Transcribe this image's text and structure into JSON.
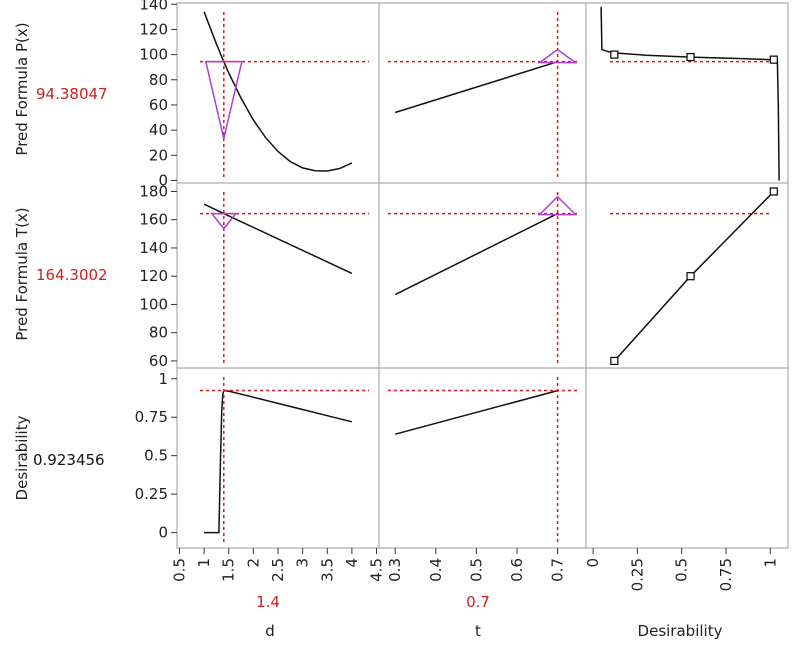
{
  "colors": {
    "accent_red": "#cc1f1f",
    "handle_purple": "#b33bd6",
    "curve": "#111111",
    "frame": "#9a9a9a"
  },
  "chart_data": {
    "type": "line",
    "responses": [
      {
        "name": "Pred Formula P(x)",
        "current_value": "94.38047",
        "y_ticks": [
          0,
          20,
          40,
          60,
          80,
          100,
          120,
          140
        ],
        "ylim": [
          -2,
          141
        ],
        "current": 94.38047,
        "handle_shape": "down-triangle",
        "profiles": {
          "d": [
            [
              1,
              134
            ],
            [
              1.25,
              108.5
            ],
            [
              1.4,
              94.38
            ],
            [
              1.5,
              85.5
            ],
            [
              1.75,
              65.5
            ],
            [
              2,
              48
            ],
            [
              2.25,
              34
            ],
            [
              2.5,
              23
            ],
            [
              2.75,
              15
            ],
            [
              3,
              10
            ],
            [
              3.25,
              7.8
            ],
            [
              3.5,
              7.5
            ],
            [
              3.75,
              9.5
            ],
            [
              4,
              14
            ]
          ],
          "t": [
            [
              0.3,
              54
            ],
            [
              0.7,
              94.38
            ]
          ]
        },
        "desirability": {
          "curve": [
            [
              0.045,
              138
            ],
            [
              0.05,
              104
            ],
            [
              0.07,
              103
            ],
            [
              0.11,
              101.5
            ],
            [
              0.3,
              99.5
            ],
            [
              0.55,
              98
            ],
            [
              0.8,
              97
            ],
            [
              1.0,
              96
            ],
            [
              1.03,
              95.5
            ],
            [
              1.04,
              94
            ],
            [
              1.045,
              60
            ],
            [
              1.05,
              0
            ]
          ],
          "points": [
            [
              0.12,
              100
            ],
            [
              0.55,
              98
            ],
            [
              1.02,
              96
            ]
          ]
        }
      },
      {
        "name": "Pred Formula T(x)",
        "current_value": "164.3002",
        "y_ticks": [
          60,
          80,
          100,
          120,
          140,
          160,
          180
        ],
        "ylim": [
          55,
          186
        ],
        "current": 164.3002,
        "handle_shape": "down-triangle",
        "profiles": {
          "d": [
            [
              1,
              171
            ],
            [
              1.4,
              164.3
            ],
            [
              4,
              122
            ]
          ],
          "t": [
            [
              0.3,
              107
            ],
            [
              0.7,
              164.3
            ]
          ]
        },
        "desirability": {
          "curve": [
            [
              0.12,
              60
            ],
            [
              0.55,
              120
            ],
            [
              1.02,
              180
            ]
          ],
          "points": [
            [
              0.12,
              60
            ],
            [
              0.55,
              120
            ],
            [
              1.02,
              180
            ]
          ]
        }
      },
      {
        "name": "Desirability",
        "current_value": "0.923456",
        "y_ticks": [
          0,
          0.25,
          0.5,
          0.75,
          1
        ],
        "y_tick_labels": [
          "0",
          "0.25",
          "0.5",
          "0.75",
          "1"
        ],
        "ylim": [
          -0.1,
          1.07
        ],
        "current": 0.923456,
        "profiles": {
          "d": [
            [
              1,
              0
            ],
            [
              1.3,
              0
            ],
            [
              1.33,
              0.45
            ],
            [
              1.36,
              0.8
            ],
            [
              1.38,
              0.9
            ],
            [
              1.4,
              0.923
            ],
            [
              1.5,
              0.92
            ],
            [
              2,
              0.88
            ],
            [
              2.5,
              0.84
            ],
            [
              3,
              0.8
            ],
            [
              3.5,
              0.76
            ],
            [
              4,
              0.72
            ]
          ],
          "t": [
            [
              0.3,
              0.64
            ],
            [
              0.7,
              0.923
            ]
          ]
        }
      }
    ],
    "factors": [
      {
        "name": "d",
        "current_value": "1.4",
        "current": 1.4,
        "x_ticks": [
          0.5,
          1,
          1.5,
          2,
          2.5,
          3,
          3.5,
          4,
          4.5
        ],
        "x_tick_labels": [
          "0.5",
          "1",
          "1.5",
          "2",
          "2.5",
          "3",
          "3.5",
          "4",
          "4.5"
        ],
        "xlim": [
          0.45,
          4.55
        ]
      },
      {
        "name": "t",
        "current_value": "0.7",
        "current": 0.7,
        "x_ticks": [
          0.3,
          0.4,
          0.5,
          0.6,
          0.7
        ],
        "x_tick_labels": [
          "0.3",
          "0.4",
          "0.5",
          "0.6",
          "0.7"
        ],
        "xlim": [
          0.26,
          0.77
        ]
      },
      {
        "name": "Desirability",
        "current_value": "",
        "x_ticks": [
          0,
          0.25,
          0.5,
          0.75,
          1
        ],
        "x_tick_labels": [
          "0",
          "0.25",
          "0.5",
          "0.75",
          "1"
        ],
        "xlim": [
          -0.04,
          1.1
        ]
      }
    ]
  }
}
